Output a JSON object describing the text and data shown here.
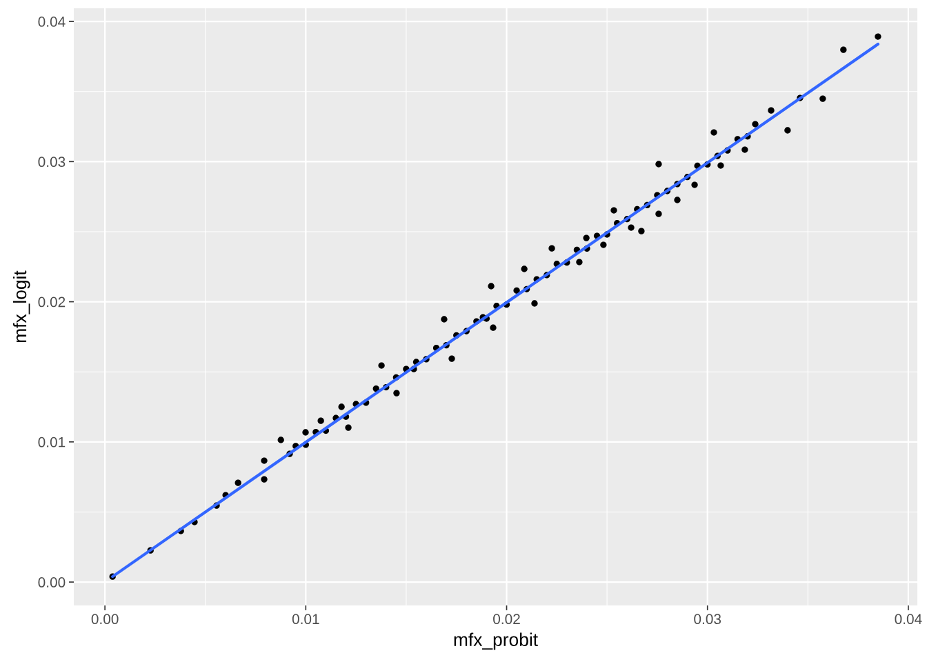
{
  "chart_data": {
    "type": "scatter",
    "xlabel": "mfx_probit",
    "ylabel": "mfx_logit",
    "xlim": [
      -0.00155,
      0.04045
    ],
    "ylim": [
      -0.00167,
      0.04094
    ],
    "xticks": [
      {
        "value": 0,
        "label": "0.00"
      },
      {
        "value": 0.01,
        "label": "0.01"
      },
      {
        "value": 0.02,
        "label": "0.02"
      },
      {
        "value": 0.03,
        "label": "0.03"
      },
      {
        "value": 0.04,
        "label": "0.04"
      }
    ],
    "yticks": [
      {
        "value": 0,
        "label": "0.00"
      },
      {
        "value": 0.01,
        "label": "0.01"
      },
      {
        "value": 0.02,
        "label": "0.02"
      },
      {
        "value": 0.03,
        "label": "0.03"
      },
      {
        "value": 0.04,
        "label": "0.04"
      }
    ],
    "grid": true,
    "series": [
      {
        "marker": "circle",
        "color": "#000000",
        "x": [
          0.00038,
          0.00227,
          0.00378,
          0.00446,
          0.00556,
          0.00601,
          0.00663,
          0.00793,
          0.00793,
          0.00876,
          0.0092,
          0.00999,
          0.01075,
          0.01178,
          0.01212,
          0.01377,
          0.01452,
          0.01538,
          0.01689,
          0.01727,
          0.01882,
          0.01923,
          0.01933,
          0.02088,
          0.02139,
          0.02225,
          0.02362,
          0.02397,
          0.02482,
          0.02534,
          0.0262,
          0.02671,
          0.02757,
          0.02757,
          0.0285,
          0.02936,
          0.03032,
          0.03066,
          0.03186,
          0.03238,
          0.03317,
          0.03399,
          0.03461,
          0.03574,
          0.03677,
          0.03849,
          0.0095,
          0.01,
          0.0105,
          0.011,
          0.0115,
          0.012,
          0.0125,
          0.013,
          0.0135,
          0.014,
          0.0145,
          0.015,
          0.0155,
          0.016,
          0.0165,
          0.017,
          0.0175,
          0.018,
          0.0185,
          0.019,
          0.0195,
          0.02,
          0.0205,
          0.021,
          0.0215,
          0.022,
          0.0225,
          0.023,
          0.0235,
          0.024,
          0.0245,
          0.025,
          0.0255,
          0.026,
          0.0265,
          0.027,
          0.0275,
          0.028,
          0.0285,
          0.029,
          0.0295,
          0.03,
          0.0305,
          0.031,
          0.0315,
          0.032
        ],
        "values": [
          0.00039,
          0.00226,
          0.00364,
          0.00428,
          0.00546,
          0.0062,
          0.00708,
          0.00733,
          0.00866,
          0.01014,
          0.00915,
          0.01068,
          0.01151,
          0.0125,
          0.01102,
          0.01545,
          0.01348,
          0.0152,
          0.01875,
          0.01594,
          0.01889,
          0.02111,
          0.01815,
          0.02234,
          0.01988,
          0.02381,
          0.02283,
          0.02455,
          0.02406,
          0.02652,
          0.02529,
          0.02504,
          0.02982,
          0.02627,
          0.02726,
          0.02834,
          0.03208,
          0.02972,
          0.03085,
          0.03267,
          0.03365,
          0.03223,
          0.03454,
          0.03449,
          0.03798,
          0.03892,
          0.0097,
          0.0098,
          0.0107,
          0.0108,
          0.0117,
          0.0118,
          0.0127,
          0.0128,
          0.0138,
          0.0139,
          0.0146,
          0.0152,
          0.0157,
          0.0159,
          0.0167,
          0.0169,
          0.0176,
          0.0179,
          0.0186,
          0.0188,
          0.0197,
          0.0198,
          0.0208,
          0.0209,
          0.0216,
          0.0219,
          0.0227,
          0.0228,
          0.0237,
          0.0238,
          0.0247,
          0.0248,
          0.0256,
          0.0259,
          0.0266,
          0.0269,
          0.0276,
          0.0279,
          0.0284,
          0.0289,
          0.0297,
          0.0298,
          0.0304,
          0.0308,
          0.0316,
          0.0318
        ]
      },
      {
        "type": "line",
        "color": "#3366ff",
        "x": [
          0.00038,
          0.03849
        ],
        "values": [
          0.00039,
          0.03838
        ]
      }
    ]
  }
}
